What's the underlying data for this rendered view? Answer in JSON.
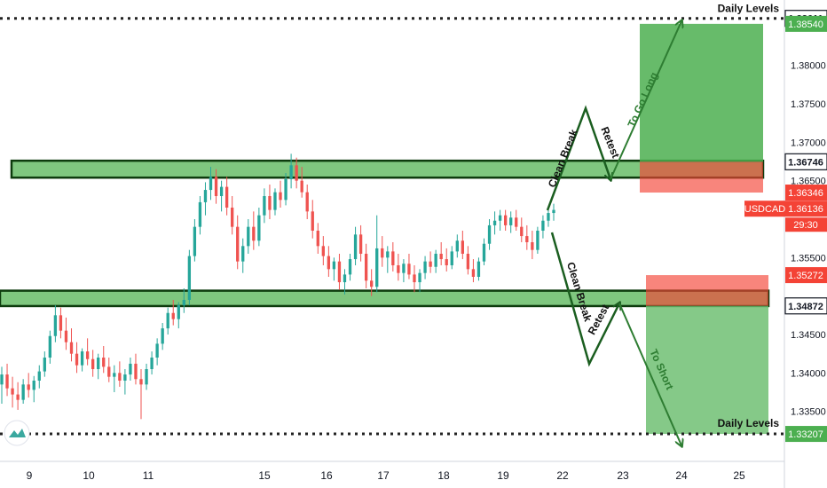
{
  "chart_data": {
    "type": "candlestick",
    "symbol": "USDCAD",
    "countdown": "29:30",
    "x_ticks": [
      "9",
      "10",
      "11",
      "15",
      "16",
      "17",
      "18",
      "19",
      "22",
      "23",
      "24",
      "25"
    ],
    "y_ticks": [
      1.38,
      1.375,
      1.37,
      1.365,
      1.355,
      1.345,
      1.34,
      1.335
    ],
    "ylim": [
      1.3285,
      1.3885
    ],
    "price_labels": [
      {
        "value": "1.38611",
        "kind": "level"
      },
      {
        "value": "1.38540",
        "kind": "target"
      },
      {
        "value": "1.36746",
        "kind": "level"
      },
      {
        "value": "1.36346",
        "kind": "stop"
      },
      {
        "value": "1.36136",
        "kind": "current"
      },
      {
        "value": "1.35272",
        "kind": "stop"
      },
      {
        "value": "1.34872",
        "kind": "level"
      },
      {
        "value": "1.33207",
        "kind": "target"
      }
    ],
    "levels": [
      {
        "label": "Daily Levels",
        "price": 1.38611
      },
      {
        "label": "Daily Levels",
        "price": 1.33207
      }
    ],
    "zones": [
      {
        "name": "resistance",
        "low": 1.3654,
        "high": 1.3676
      },
      {
        "name": "support",
        "low": 1.3487,
        "high": 1.3507
      }
    ],
    "positions": [
      {
        "side": "long",
        "entry": 1.36746,
        "stop": 1.36346,
        "target": 1.3854
      },
      {
        "side": "short",
        "entry": 1.34872,
        "stop": 1.35272,
        "target": 1.33207
      }
    ],
    "annotations": [
      "Clean Break",
      "Retest",
      "To Go Long",
      "Clean Break",
      "Retest",
      "To Short"
    ],
    "candles": [
      [
        1.3385,
        1.3408,
        1.336,
        1.3398
      ],
      [
        1.3398,
        1.3412,
        1.337,
        1.338
      ],
      [
        1.338,
        1.3395,
        1.3355,
        1.3372
      ],
      [
        1.3372,
        1.3388,
        1.3352,
        1.3365
      ],
      [
        1.3365,
        1.3392,
        1.336,
        1.3385
      ],
      [
        1.3385,
        1.34,
        1.3368,
        1.3378
      ],
      [
        1.3378,
        1.3396,
        1.3362,
        1.339
      ],
      [
        1.339,
        1.341,
        1.338,
        1.3402
      ],
      [
        1.3402,
        1.3428,
        1.3395,
        1.342
      ],
      [
        1.342,
        1.3455,
        1.3412,
        1.3448
      ],
      [
        1.3448,
        1.3488,
        1.344,
        1.3475
      ],
      [
        1.3475,
        1.3485,
        1.3445,
        1.3455
      ],
      [
        1.3455,
        1.3472,
        1.343,
        1.344
      ],
      [
        1.344,
        1.3458,
        1.3415,
        1.3425
      ],
      [
        1.3425,
        1.344,
        1.34,
        1.341
      ],
      [
        1.341,
        1.3432,
        1.3402,
        1.3428
      ],
      [
        1.3428,
        1.3445,
        1.341,
        1.3418
      ],
      [
        1.3418,
        1.343,
        1.3395,
        1.3405
      ],
      [
        1.3405,
        1.3425,
        1.3392,
        1.342
      ],
      [
        1.342,
        1.3435,
        1.34,
        1.3408
      ],
      [
        1.3408,
        1.342,
        1.3388,
        1.3395
      ],
      [
        1.3395,
        1.341,
        1.3375,
        1.34
      ],
      [
        1.34,
        1.3415,
        1.3382,
        1.339
      ],
      [
        1.339,
        1.3405,
        1.3372,
        1.3398
      ],
      [
        1.3398,
        1.342,
        1.339,
        1.3412
      ],
      [
        1.3412,
        1.3425,
        1.3385,
        1.3392
      ],
      [
        1.3392,
        1.3405,
        1.334,
        1.3385
      ],
      [
        1.3385,
        1.3412,
        1.3378,
        1.3405
      ],
      [
        1.3405,
        1.3428,
        1.3398,
        1.342
      ],
      [
        1.342,
        1.3445,
        1.341,
        1.3438
      ],
      [
        1.3438,
        1.3465,
        1.343,
        1.3458
      ],
      [
        1.3458,
        1.3485,
        1.345,
        1.3478
      ],
      [
        1.3478,
        1.3495,
        1.3462,
        1.347
      ],
      [
        1.347,
        1.3492,
        1.3458,
        1.3488
      ],
      [
        1.3488,
        1.351,
        1.3478,
        1.3495
      ],
      [
        1.3495,
        1.356,
        1.3488,
        1.3552
      ],
      [
        1.3552,
        1.36,
        1.3545,
        1.359
      ],
      [
        1.359,
        1.363,
        1.358,
        1.3622
      ],
      [
        1.3622,
        1.3648,
        1.3605,
        1.3638
      ],
      [
        1.3638,
        1.3668,
        1.3625,
        1.3655
      ],
      [
        1.3655,
        1.3665,
        1.362,
        1.363
      ],
      [
        1.363,
        1.365,
        1.361,
        1.3642
      ],
      [
        1.3642,
        1.3655,
        1.3605,
        1.3615
      ],
      [
        1.3615,
        1.363,
        1.358,
        1.359
      ],
      [
        1.359,
        1.3605,
        1.3535,
        1.3545
      ],
      [
        1.3545,
        1.3575,
        1.353,
        1.3565
      ],
      [
        1.3565,
        1.36,
        1.3555,
        1.359
      ],
      [
        1.359,
        1.361,
        1.356,
        1.3572
      ],
      [
        1.3572,
        1.3615,
        1.3565,
        1.3605
      ],
      [
        1.3605,
        1.364,
        1.3595,
        1.363
      ],
      [
        1.363,
        1.3645,
        1.36,
        1.3612
      ],
      [
        1.3612,
        1.364,
        1.3605,
        1.3635
      ],
      [
        1.3635,
        1.365,
        1.3615,
        1.3625
      ],
      [
        1.3625,
        1.366,
        1.3618,
        1.3652
      ],
      [
        1.3652,
        1.3685,
        1.364,
        1.367
      ],
      [
        1.367,
        1.368,
        1.364,
        1.365
      ],
      [
        1.365,
        1.3668,
        1.3628,
        1.3635
      ],
      [
        1.3635,
        1.3645,
        1.36,
        1.361
      ],
      [
        1.361,
        1.3625,
        1.3575,
        1.3585
      ],
      [
        1.3585,
        1.3595,
        1.3555,
        1.3565
      ],
      [
        1.3565,
        1.3578,
        1.354,
        1.3552
      ],
      [
        1.3552,
        1.3565,
        1.3525,
        1.3535
      ],
      [
        1.3535,
        1.355,
        1.352,
        1.3545
      ],
      [
        1.3545,
        1.3555,
        1.3508,
        1.3518
      ],
      [
        1.3518,
        1.3535,
        1.3502,
        1.3528
      ],
      [
        1.3528,
        1.3555,
        1.352,
        1.3548
      ],
      [
        1.3548,
        1.359,
        1.354,
        1.358
      ],
      [
        1.358,
        1.3592,
        1.3545,
        1.3555
      ],
      [
        1.3555,
        1.3568,
        1.351,
        1.352
      ],
      [
        1.352,
        1.3535,
        1.35,
        1.3512
      ],
      [
        1.3512,
        1.3605,
        1.3505,
        1.3562
      ],
      [
        1.3562,
        1.3578,
        1.3538,
        1.355
      ],
      [
        1.355,
        1.3565,
        1.353,
        1.3558
      ],
      [
        1.3558,
        1.357,
        1.3532,
        1.354
      ],
      [
        1.354,
        1.3555,
        1.352,
        1.353
      ],
      [
        1.353,
        1.3548,
        1.3518,
        1.3542
      ],
      [
        1.3542,
        1.3555,
        1.3522,
        1.3528
      ],
      [
        1.3528,
        1.354,
        1.3505,
        1.3518
      ],
      [
        1.3518,
        1.3535,
        1.3505,
        1.353
      ],
      [
        1.353,
        1.3552,
        1.3522,
        1.3545
      ],
      [
        1.3545,
        1.3558,
        1.353,
        1.3538
      ],
      [
        1.3538,
        1.356,
        1.353,
        1.3555
      ],
      [
        1.3555,
        1.357,
        1.354,
        1.3548
      ],
      [
        1.3548,
        1.3562,
        1.3532,
        1.354
      ],
      [
        1.354,
        1.3565,
        1.3535,
        1.3558
      ],
      [
        1.3558,
        1.358,
        1.355,
        1.3572
      ],
      [
        1.3572,
        1.3585,
        1.3548,
        1.3555
      ],
      [
        1.3555,
        1.3565,
        1.3528,
        1.3535
      ],
      [
        1.3535,
        1.3548,
        1.3518,
        1.3525
      ],
      [
        1.3525,
        1.355,
        1.352,
        1.3545
      ],
      [
        1.3545,
        1.3575,
        1.354,
        1.3568
      ],
      [
        1.3568,
        1.36,
        1.356,
        1.3592
      ],
      [
        1.3592,
        1.361,
        1.358,
        1.3598
      ],
      [
        1.3598,
        1.3612,
        1.3585,
        1.3605
      ],
      [
        1.3605,
        1.3612,
        1.3585,
        1.3592
      ],
      [
        1.3592,
        1.361,
        1.3582,
        1.3602
      ],
      [
        1.3602,
        1.3612,
        1.3585,
        1.359
      ],
      [
        1.359,
        1.3602,
        1.357,
        1.3578
      ],
      [
        1.3578,
        1.3592,
        1.356,
        1.357
      ],
      [
        1.357,
        1.3585,
        1.3548,
        1.356
      ],
      [
        1.356,
        1.359,
        1.3555,
        1.3585
      ],
      [
        1.3585,
        1.3605,
        1.3575,
        1.3598
      ],
      [
        1.3598,
        1.3615,
        1.359,
        1.3608
      ],
      [
        1.3608,
        1.362,
        1.3598,
        1.3612
      ]
    ]
  }
}
